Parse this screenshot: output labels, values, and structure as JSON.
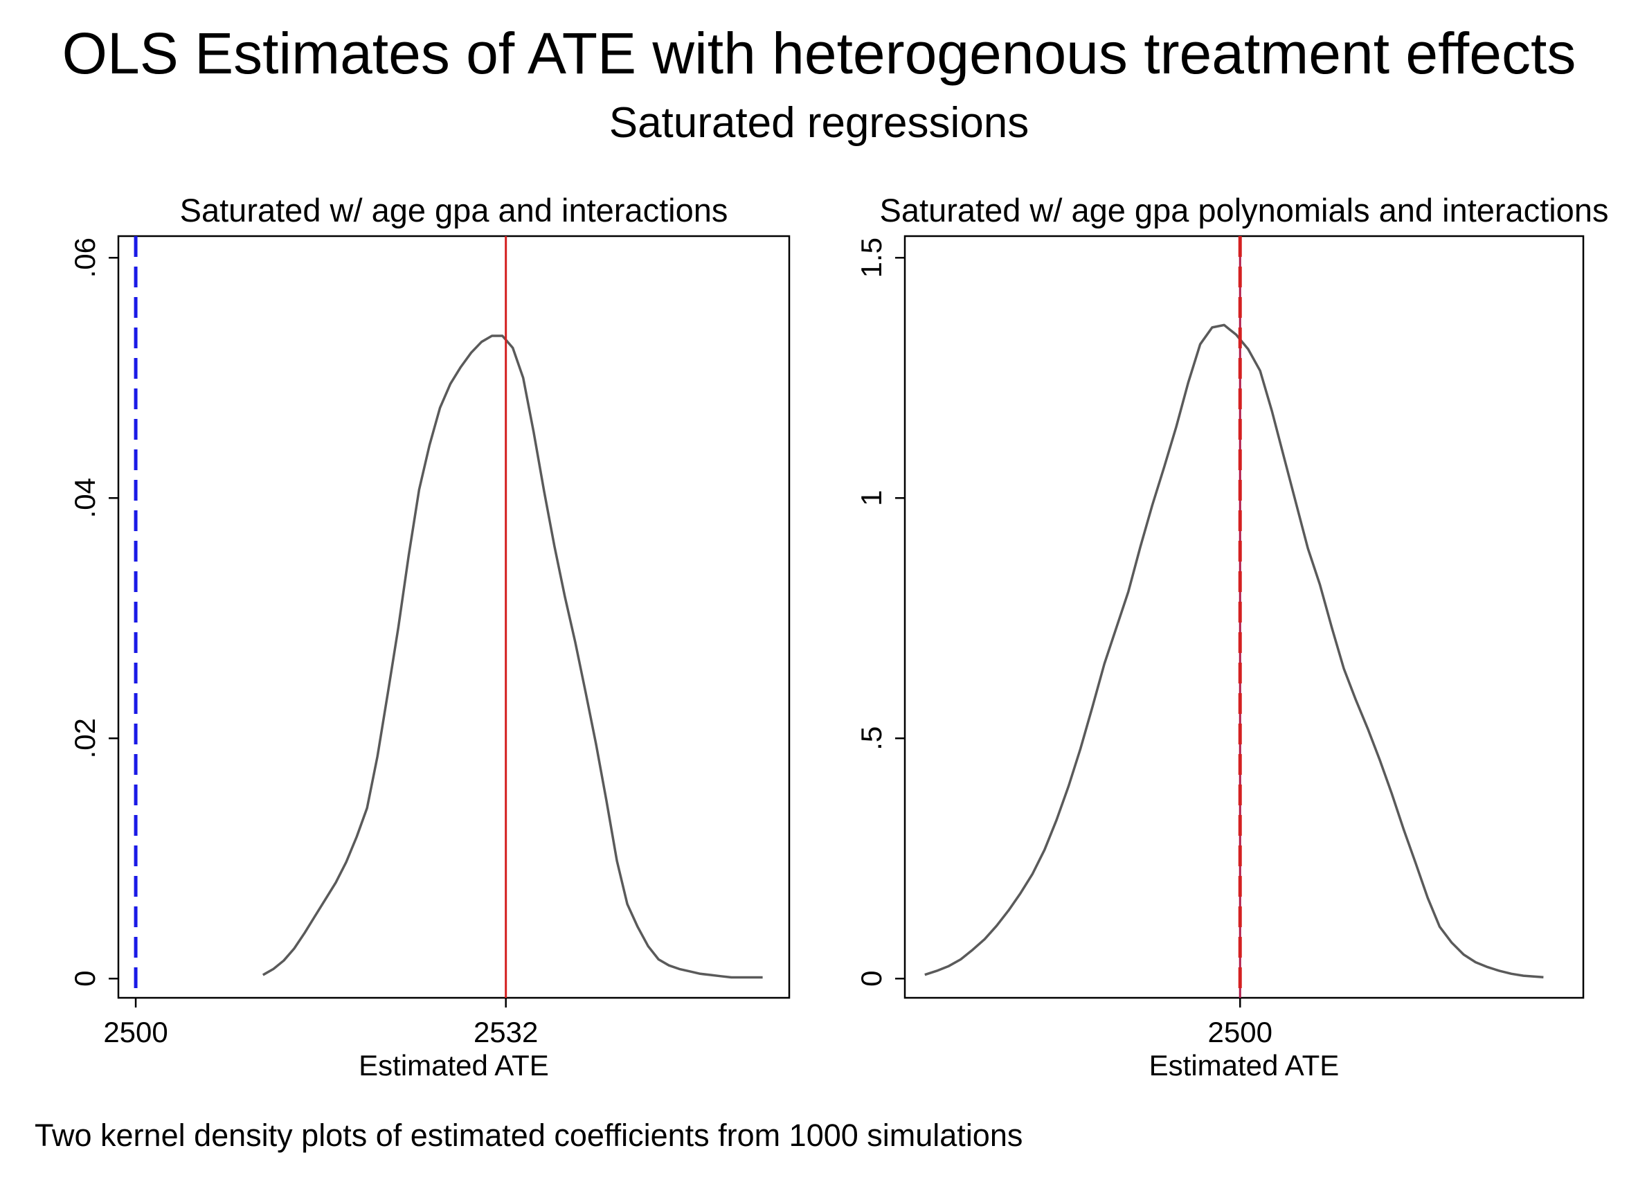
{
  "title": "OLS Estimates of ATE with heterogenous treatment effects",
  "subtitle": "Saturated regressions",
  "note": "Two kernel density plots of estimated coefficients from 1000 simulations",
  "colors": {
    "density": "#5a5a5a",
    "true_ate": "#1a1ae6",
    "mean_estimate": "#d42020",
    "overlap": "#b01a4a"
  },
  "chart_data": [
    {
      "type": "line",
      "title": "Saturated w/ age gpa and interactions",
      "xlabel": "Estimated ATE",
      "ylabel": "",
      "xlim": [
        2498.5,
        2556.5
      ],
      "ylim": [
        -0.0016,
        0.0618
      ],
      "xticks": [
        {
          "value": 2500,
          "label": "2500"
        },
        {
          "value": 2532,
          "label": "2532"
        }
      ],
      "yticks": [
        {
          "value": 0,
          "label": "0"
        },
        {
          "value": 0.02,
          "label": ".02"
        },
        {
          "value": 0.04,
          "label": ".04"
        },
        {
          "value": 0.06,
          "label": ".06"
        }
      ],
      "grid": false,
      "series": [
        {
          "style": "solid",
          "x": [
            2511,
            2511.9,
            2512.8,
            2513.7,
            2514.6,
            2515.5,
            2516.4,
            2517.3,
            2518.2,
            2519.1,
            2520,
            2520.9,
            2521.8,
            2522.7,
            2523.6,
            2524.5,
            2525.4,
            2526.3,
            2527.2,
            2528.1,
            2529,
            2529.9,
            2530.8,
            2531.7,
            2532.6,
            2533.5,
            2534.4,
            2535.3,
            2536.2,
            2537.1,
            2538,
            2538.9,
            2539.8,
            2540.7,
            2541.6,
            2542.5,
            2543.4,
            2544.3,
            2545.2,
            2546.1,
            2547,
            2547.9,
            2548.8,
            2549.7,
            2550.6,
            2551.5,
            2552.4,
            2553.3,
            2554.2
          ],
          "y": [
            0.0003,
            0.0008,
            0.0015,
            0.0025,
            0.0038,
            0.0052,
            0.0066,
            0.008,
            0.0097,
            0.0118,
            0.0142,
            0.0185,
            0.0238,
            0.0292,
            0.0352,
            0.0407,
            0.0444,
            0.0475,
            0.0495,
            0.0509,
            0.0521,
            0.053,
            0.0535,
            0.0535,
            0.0525,
            0.05,
            0.0455,
            0.0406,
            0.036,
            0.0318,
            0.028,
            0.0238,
            0.0195,
            0.0148,
            0.0098,
            0.0062,
            0.0043,
            0.0027,
            0.0016,
            0.0011,
            0.0008,
            0.0006,
            0.0004,
            0.0003,
            0.0002,
            0.0001,
            0.0001,
            0.0001,
            0.0001
          ]
        }
      ],
      "vlines": [
        {
          "value": 2500,
          "style": "dashed",
          "color_key": "true_ate"
        },
        {
          "value": 2532,
          "style": "solid",
          "color_key": "mean_estimate"
        }
      ]
    },
    {
      "type": "line",
      "title": "Saturated w/ age gpa polynomials and interactions",
      "xlabel": "Estimated ATE",
      "ylabel": "",
      "xlim": [
        2495.8,
        2504.3
      ],
      "ylim": [
        -0.04,
        1.545
      ],
      "xticks": [
        {
          "value": 2500,
          "label": "2500"
        }
      ],
      "yticks": [
        {
          "value": 0,
          "label": "0"
        },
        {
          "value": 0.5,
          "label": ".5"
        },
        {
          "value": 1,
          "label": "1"
        },
        {
          "value": 1.5,
          "label": "1.5"
        }
      ],
      "grid": false,
      "series": [
        {
          "style": "solid",
          "x": [
            2496.05,
            2496.2,
            2496.35,
            2496.5,
            2496.65,
            2496.8,
            2496.95,
            2497.1,
            2497.25,
            2497.4,
            2497.55,
            2497.7,
            2497.85,
            2498,
            2498.15,
            2498.3,
            2498.45,
            2498.6,
            2498.75,
            2498.9,
            2499.05,
            2499.2,
            2499.35,
            2499.5,
            2499.65,
            2499.8,
            2499.95,
            2500.1,
            2500.25,
            2500.4,
            2500.55,
            2500.7,
            2500.85,
            2501,
            2501.15,
            2501.3,
            2501.45,
            2501.6,
            2501.75,
            2501.9,
            2502.05,
            2502.2,
            2502.35,
            2502.5,
            2502.65,
            2502.8,
            2502.95,
            2503.1,
            2503.25,
            2503.4,
            2503.55,
            2503.8
          ],
          "y": [
            0.008,
            0.016,
            0.026,
            0.04,
            0.06,
            0.082,
            0.11,
            0.142,
            0.178,
            0.218,
            0.268,
            0.33,
            0.4,
            0.478,
            0.565,
            0.655,
            0.73,
            0.805,
            0.898,
            0.985,
            1.065,
            1.148,
            1.24,
            1.32,
            1.355,
            1.36,
            1.34,
            1.31,
            1.265,
            1.18,
            1.085,
            0.99,
            0.895,
            0.82,
            0.73,
            0.645,
            0.58,
            0.52,
            0.455,
            0.385,
            0.31,
            0.24,
            0.168,
            0.108,
            0.075,
            0.05,
            0.034,
            0.024,
            0.016,
            0.01,
            0.006,
            0.003
          ]
        }
      ],
      "vlines": [
        {
          "value": 2500,
          "style": "solid",
          "color_key": "overlap"
        },
        {
          "value": 2500,
          "style": "dashed",
          "color_key": "mean_estimate"
        }
      ]
    }
  ]
}
